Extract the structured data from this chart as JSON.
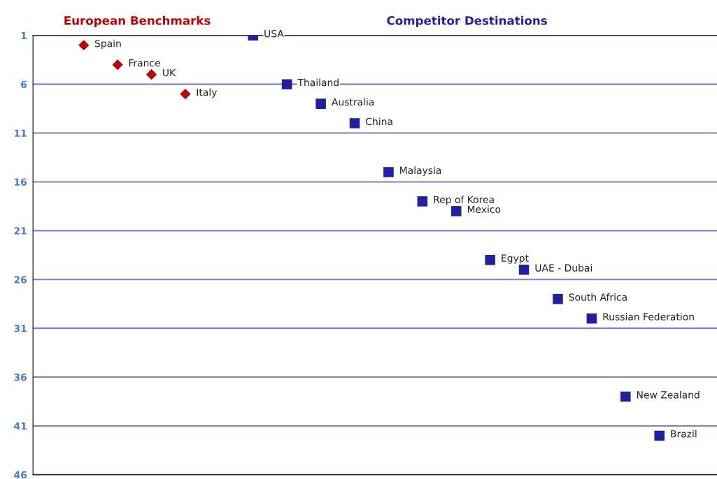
{
  "chart_data": {
    "type": "scatter",
    "categories": [
      null,
      null,
      null,
      null,
      null,
      null,
      null,
      null,
      null,
      null,
      null,
      null,
      null,
      null,
      null,
      null,
      null,
      null,
      null,
      null
    ],
    "series": [
      {
        "name": "European Benchmarks",
        "color": "#c00000",
        "marker": "diamond",
        "values": [
          null,
          2,
          4,
          5,
          7,
          null,
          null,
          null,
          null,
          null,
          null,
          null,
          null,
          null,
          null,
          null,
          null,
          null,
          null,
          null
        ],
        "value_labels": [
          null,
          "Spain",
          "France",
          "UK",
          "Italy",
          null,
          null,
          null,
          null,
          null,
          null,
          null,
          null,
          null,
          null,
          null,
          null,
          null,
          null,
          null
        ]
      },
      {
        "name": "Competitor Destinations",
        "color": "#2020a0",
        "marker": "square",
        "values": [
          null,
          null,
          null,
          null,
          null,
          null,
          1,
          6,
          8,
          10,
          15,
          18,
          19,
          24,
          25,
          28,
          30,
          38,
          42,
          null
        ],
        "value_labels": [
          null,
          null,
          null,
          null,
          null,
          null,
          "USA",
          "Thailand",
          "Australia",
          "China",
          "Malaysia",
          "Rep of Korea",
          "Mexico",
          "Egypt",
          "UAE - Dubai",
          "South Africa",
          "Russian Federation",
          "New Zealand",
          "Brazil",
          null
        ]
      }
    ],
    "ylim": [
      46,
      1
    ],
    "yticks": [
      1,
      6,
      11,
      16,
      21,
      26,
      31,
      36,
      41,
      46
    ],
    "grid": "y",
    "legend": false,
    "tick_labels": "y"
  }
}
